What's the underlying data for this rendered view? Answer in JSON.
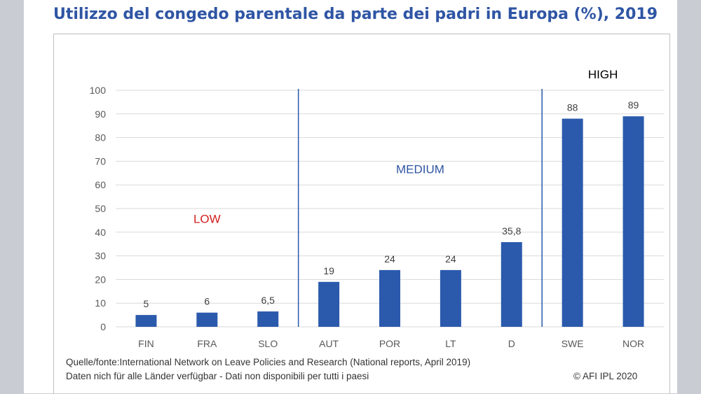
{
  "title": "Utilizzo del congedo parentale da parte dei padri in Europa (%), 2019",
  "notes": {
    "source": "Quelle/fonte:International Network on Leave Policies and Research (National reports, April 2019)",
    "availability": "Daten nich für alle Länder verfügbar - Dati non disponibili per tutti i paesi",
    "copyright": "© AFI IPL 2020"
  },
  "colors": {
    "bar": "#2b5aad",
    "group_divider": "#2b5aad",
    "low_label": "#d21f1f",
    "medium_label": "#2f55a4",
    "high_label": "#000000",
    "gridline": "#d9d9d9",
    "text": "#595959"
  },
  "chart_data": {
    "type": "bar",
    "categories": [
      "FIN",
      "FRA",
      "SLO",
      "AUT",
      "POR",
      "LT",
      "D",
      "SWE",
      "NOR"
    ],
    "values": [
      5,
      6,
      6.5,
      19,
      24,
      24,
      35.8,
      88,
      89
    ],
    "data_labels": [
      "5",
      "6",
      "6,5",
      "19",
      "24",
      "24",
      "35,8",
      "88",
      "89"
    ],
    "yticks": [
      "0",
      "10",
      "20",
      "30",
      "40",
      "50",
      "60",
      "70",
      "80",
      "90",
      "100"
    ],
    "ylim": [
      0,
      100
    ],
    "grid": true,
    "legend": "none",
    "groups": [
      {
        "label": "LOW",
        "categories": [
          "FIN",
          "FRA",
          "SLO"
        ],
        "value_level": 44,
        "color_key": "low_label"
      },
      {
        "label": "MEDIUM",
        "categories": [
          "AUT",
          "POR",
          "LT",
          "D"
        ],
        "value_level": 65,
        "color_key": "medium_label"
      },
      {
        "label": "HIGH",
        "categories": [
          "SWE",
          "NOR"
        ],
        "value_level": 105,
        "color_key": "high_label"
      }
    ]
  }
}
